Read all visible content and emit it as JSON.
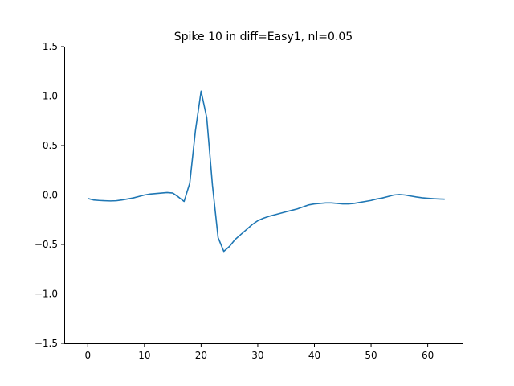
{
  "chart_data": {
    "type": "line",
    "title": "Spike 10 in diff=Easy1, nl=0.05",
    "xlabel": "",
    "ylabel": "",
    "xlim": [
      -4.15,
      66.15
    ],
    "ylim": [
      -1.5,
      1.5
    ],
    "xticks": [
      0,
      10,
      20,
      30,
      40,
      50,
      60
    ],
    "yticks": [
      -1.5,
      -1.0,
      -0.5,
      0.0,
      0.5,
      1.0,
      1.5
    ],
    "xtick_labels": [
      "0",
      "10",
      "20",
      "30",
      "40",
      "50",
      "60"
    ],
    "ytick_labels": [
      "−1.5",
      "−1.0",
      "−0.5",
      "0.0",
      "0.5",
      "1.0",
      "1.5"
    ],
    "grid": false,
    "series": [
      {
        "color": "#1f77b4",
        "x": [
          0,
          1,
          2,
          3,
          4,
          5,
          6,
          7,
          8,
          9,
          10,
          11,
          12,
          13,
          14,
          15,
          16,
          17,
          18,
          19,
          20,
          21,
          22,
          23,
          24,
          25,
          26,
          27,
          28,
          29,
          30,
          31,
          32,
          33,
          34,
          35,
          36,
          37,
          38,
          39,
          40,
          41,
          42,
          43,
          44,
          45,
          46,
          47,
          48,
          49,
          50,
          51,
          52,
          53,
          54,
          55,
          56,
          57,
          58,
          59,
          60,
          61,
          62,
          63
        ],
        "y": [
          -0.035,
          -0.05,
          -0.055,
          -0.058,
          -0.06,
          -0.058,
          -0.05,
          -0.04,
          -0.03,
          -0.015,
          0.0,
          0.01,
          0.015,
          0.02,
          0.025,
          0.02,
          -0.02,
          -0.065,
          0.12,
          0.65,
          1.05,
          0.78,
          0.1,
          -0.43,
          -0.57,
          -0.52,
          -0.45,
          -0.4,
          -0.35,
          -0.3,
          -0.26,
          -0.235,
          -0.215,
          -0.2,
          -0.185,
          -0.17,
          -0.155,
          -0.14,
          -0.12,
          -0.1,
          -0.09,
          -0.085,
          -0.08,
          -0.08,
          -0.085,
          -0.09,
          -0.09,
          -0.085,
          -0.075,
          -0.065,
          -0.055,
          -0.04,
          -0.03,
          -0.015,
          0.0,
          0.005,
          0.0,
          -0.01,
          -0.02,
          -0.028,
          -0.033,
          -0.037,
          -0.04,
          -0.042
        ]
      }
    ]
  }
}
